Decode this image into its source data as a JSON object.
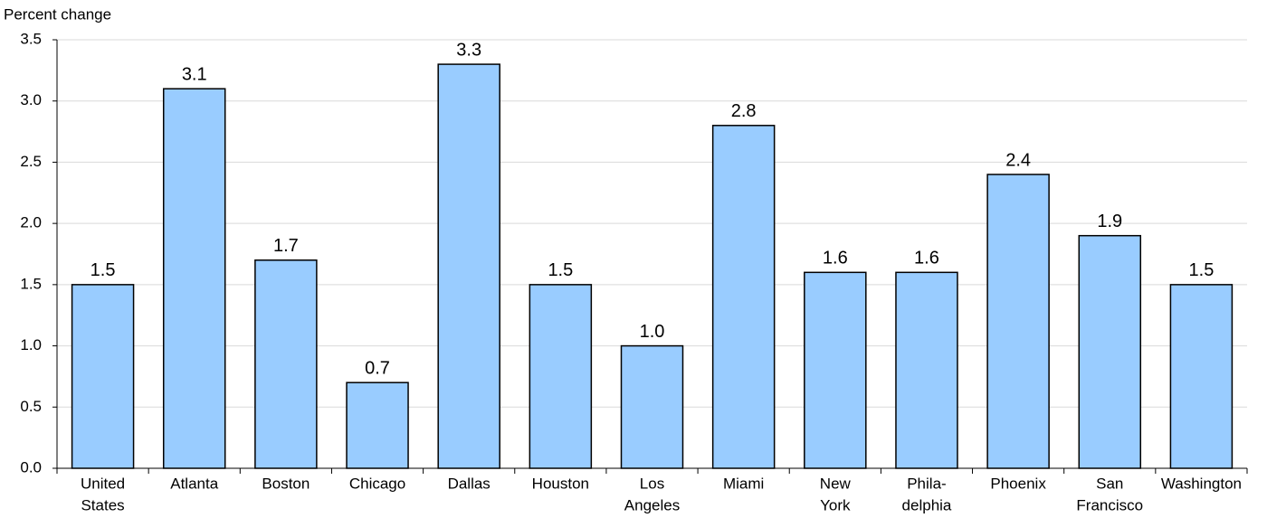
{
  "chart_data": {
    "type": "bar",
    "y_axis_label": "Percent change",
    "categories": [
      [
        "United",
        "States"
      ],
      [
        "Atlanta"
      ],
      [
        "Boston"
      ],
      [
        "Chicago"
      ],
      [
        "Dallas"
      ],
      [
        "Houston"
      ],
      [
        "Los",
        "Angeles"
      ],
      [
        "Miami"
      ],
      [
        "New",
        "York"
      ],
      [
        "Phila-",
        "delphia"
      ],
      [
        "Phoenix"
      ],
      [
        "San",
        "Francisco"
      ],
      [
        "Washington"
      ]
    ],
    "values": [
      1.5,
      3.1,
      1.7,
      0.7,
      3.3,
      1.5,
      1.0,
      2.8,
      1.6,
      1.6,
      2.4,
      1.9,
      1.5
    ],
    "value_labels": [
      "1.5",
      "3.1",
      "1.7",
      "0.7",
      "3.3",
      "1.5",
      "1.0",
      "2.8",
      "1.6",
      "1.6",
      "2.4",
      "1.9",
      "1.5"
    ],
    "color": "#99ccff",
    "ylim": [
      0,
      3.5
    ],
    "yticks": [
      {
        "value": 0,
        "label": "0.0"
      },
      0.5,
      {
        "value": 1,
        "label": "1.0"
      },
      1.5,
      {
        "value": 2,
        "label": "2.0"
      },
      2.5,
      {
        "value": 3,
        "label": "3.0"
      },
      3.5
    ],
    "grid": true
  }
}
